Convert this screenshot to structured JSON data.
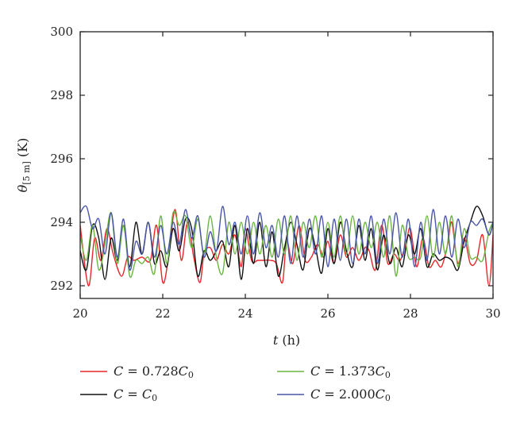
{
  "chart_data": {
    "type": "line",
    "xlabel": {
      "var": "t",
      "unit": " (h)"
    },
    "ylabel": {
      "var": "θ",
      "sub": "[5 m]",
      "unit": " (K)"
    },
    "xlim": [
      20,
      30
    ],
    "ylim": [
      291.6,
      300
    ],
    "xticks": [
      20,
      22,
      24,
      26,
      28,
      30
    ],
    "yticks": [
      292,
      294,
      296,
      298,
      300
    ],
    "grid": false,
    "legend_position": "bottom",
    "series": [
      {
        "name": "C = 0.728C0",
        "legend": {
          "pre": "C = 0.728",
          "var": "C",
          "sub": "0"
        },
        "color": "#e8262a",
        "x": [
          20.0,
          20.2,
          20.35,
          20.5,
          20.65,
          20.8,
          21.0,
          21.15,
          21.3,
          21.5,
          21.7,
          21.85,
          22.0,
          22.15,
          22.3,
          22.45,
          22.6,
          22.75,
          22.9,
          23.0,
          23.15,
          23.3,
          23.45,
          23.6,
          23.75,
          23.9,
          24.0,
          24.15,
          24.3,
          24.45,
          24.6,
          24.75,
          24.9,
          25.0,
          25.15,
          25.3,
          25.45,
          25.6,
          25.75,
          25.9,
          26.0,
          26.15,
          26.3,
          26.45,
          26.6,
          26.75,
          26.9,
          27.0,
          27.15,
          27.3,
          27.45,
          27.6,
          27.75,
          27.9,
          28.0,
          28.15,
          28.3,
          28.45,
          28.6,
          28.75,
          28.9,
          29.0,
          29.15,
          29.3,
          29.45,
          29.6,
          29.75,
          29.9,
          30.0
        ],
        "values": [
          293.9,
          292.0,
          293.5,
          292.8,
          293.8,
          293.0,
          292.3,
          292.9,
          292.8,
          292.9,
          292.8,
          293.9,
          292.1,
          293.0,
          294.4,
          292.8,
          294.0,
          292.9,
          292.1,
          293.0,
          293.2,
          292.8,
          293.3,
          293.0,
          293.6,
          292.6,
          293.8,
          292.8,
          292.8,
          292.8,
          292.8,
          292.7,
          292.1,
          293.4,
          292.7,
          293.9,
          292.8,
          292.9,
          293.3,
          292.9,
          293.4,
          292.7,
          293.6,
          292.9,
          293.2,
          292.8,
          293.2,
          293.1,
          292.5,
          293.9,
          292.7,
          293.0,
          292.8,
          293.4,
          293.8,
          292.6,
          293.5,
          292.6,
          292.8,
          292.6,
          293.3,
          294.0,
          292.7,
          293.5,
          292.7,
          292.8,
          293.6,
          292.0,
          293.6
        ]
      },
      {
        "name": "C = C0",
        "legend": {
          "pre": "C = ",
          "var": "C",
          "sub": "0"
        },
        "color": "#111111",
        "x": [
          20.0,
          20.15,
          20.3,
          20.45,
          20.6,
          20.75,
          20.9,
          21.05,
          21.2,
          21.35,
          21.5,
          21.65,
          21.8,
          21.95,
          22.1,
          22.25,
          22.4,
          22.55,
          22.7,
          22.85,
          23.0,
          23.15,
          23.3,
          23.45,
          23.6,
          23.75,
          23.9,
          24.05,
          24.2,
          24.35,
          24.5,
          24.65,
          24.8,
          24.95,
          25.1,
          25.25,
          25.4,
          25.55,
          25.7,
          25.85,
          26.0,
          26.15,
          26.3,
          26.45,
          26.6,
          26.75,
          26.9,
          27.05,
          27.2,
          27.35,
          27.5,
          27.65,
          27.8,
          27.95,
          28.1,
          28.25,
          28.4,
          28.55,
          28.7,
          28.85,
          29.0,
          29.15,
          29.3,
          29.45,
          29.6,
          29.75,
          29.9,
          30.0
        ],
        "values": [
          293.1,
          292.5,
          293.9,
          293.5,
          292.2,
          293.5,
          292.8,
          293.9,
          292.6,
          294.0,
          293.0,
          294.0,
          292.7,
          293.1,
          292.6,
          293.8,
          293.1,
          294.1,
          293.8,
          292.3,
          293.1,
          292.8,
          293.1,
          293.4,
          292.6,
          293.9,
          292.2,
          293.8,
          292.7,
          294.0,
          292.6,
          293.7,
          292.3,
          293.2,
          294.0,
          293.3,
          292.5,
          293.8,
          293.2,
          292.4,
          293.8,
          292.7,
          294.0,
          293.1,
          292.6,
          293.9,
          292.8,
          293.8,
          292.5,
          293.6,
          292.7,
          293.2,
          292.6,
          293.6,
          293.0,
          293.8,
          292.6,
          293.0,
          292.8,
          292.9,
          292.8,
          292.5,
          293.4,
          294.0,
          294.5,
          294.2,
          293.6,
          294.0
        ]
      },
      {
        "name": "C = 1.373C0",
        "legend": {
          "pre": "C = 1.373",
          "var": "C",
          "sub": "0"
        },
        "color": "#6ab540",
        "x": [
          20.0,
          20.15,
          20.3,
          20.45,
          20.6,
          20.75,
          20.9,
          21.05,
          21.2,
          21.35,
          21.5,
          21.65,
          21.8,
          21.95,
          22.1,
          22.25,
          22.4,
          22.55,
          22.7,
          22.85,
          23.0,
          23.15,
          23.3,
          23.45,
          23.6,
          23.75,
          23.9,
          24.05,
          24.2,
          24.35,
          24.5,
          24.65,
          24.8,
          24.95,
          25.1,
          25.25,
          25.4,
          25.55,
          25.7,
          25.85,
          26.0,
          26.15,
          26.3,
          26.45,
          26.6,
          26.75,
          26.9,
          27.05,
          27.2,
          27.35,
          27.5,
          27.65,
          27.8,
          27.95,
          28.1,
          28.25,
          28.4,
          28.55,
          28.7,
          28.85,
          29.0,
          29.15,
          29.3,
          29.45,
          29.6,
          29.75,
          29.9,
          30.0
        ],
        "values": [
          293.6,
          292.8,
          293.9,
          292.5,
          293.3,
          294.3,
          292.7,
          293.9,
          292.3,
          292.8,
          292.7,
          292.9,
          292.4,
          294.2,
          292.7,
          294.3,
          293.9,
          294.2,
          293.2,
          294.1,
          293.0,
          294.2,
          292.9,
          292.4,
          294.0,
          293.0,
          294.0,
          293.0,
          294.0,
          293.0,
          293.9,
          292.9,
          294.1,
          293.0,
          294.2,
          292.8,
          294.0,
          293.2,
          294.2,
          292.9,
          294.0,
          292.9,
          294.2,
          293.0,
          294.2,
          293.0,
          294.0,
          293.2,
          294.0,
          292.9,
          294.2,
          292.3,
          293.9,
          292.9,
          292.9,
          292.9,
          294.2,
          292.9,
          294.0,
          293.0,
          294.2,
          292.6,
          293.8,
          292.9,
          292.9,
          292.8,
          293.7,
          294.0
        ]
      },
      {
        "name": "C = 2.000C0",
        "legend": {
          "pre": "C = 2.000",
          "var": "C",
          "sub": "0"
        },
        "color": "#4a56a6",
        "x": [
          20.0,
          20.15,
          20.3,
          20.45,
          20.6,
          20.75,
          20.9,
          21.05,
          21.2,
          21.35,
          21.5,
          21.65,
          21.8,
          21.95,
          22.1,
          22.25,
          22.4,
          22.55,
          22.7,
          22.85,
          23.0,
          23.15,
          23.3,
          23.45,
          23.6,
          23.75,
          23.9,
          24.05,
          24.2,
          24.35,
          24.5,
          24.65,
          24.8,
          24.95,
          25.1,
          25.25,
          25.4,
          25.55,
          25.7,
          25.85,
          26.0,
          26.15,
          26.3,
          26.45,
          26.6,
          26.75,
          26.9,
          27.05,
          27.2,
          27.35,
          27.5,
          27.65,
          27.8,
          27.95,
          28.1,
          28.25,
          28.4,
          28.55,
          28.7,
          28.85,
          29.0,
          29.15,
          29.3,
          29.45,
          29.6,
          29.75,
          29.9,
          30.0
        ],
        "values": [
          294.3,
          294.5,
          293.8,
          294.1,
          293.0,
          294.3,
          292.9,
          294.1,
          292.5,
          293.4,
          293.0,
          294.0,
          292.9,
          293.9,
          293.0,
          294.0,
          293.3,
          294.4,
          293.5,
          294.2,
          292.9,
          293.7,
          293.1,
          294.5,
          293.3,
          294.0,
          293.0,
          294.2,
          293.0,
          294.3,
          293.2,
          293.9,
          292.9,
          294.2,
          292.7,
          294.2,
          292.9,
          294.1,
          293.0,
          294.2,
          292.6,
          294.1,
          292.8,
          294.1,
          292.7,
          294.1,
          293.0,
          294.2,
          292.7,
          294.1,
          293.0,
          294.3,
          292.9,
          294.1,
          292.6,
          294.0,
          292.8,
          294.4,
          293.0,
          294.2,
          292.9,
          294.1,
          293.2,
          294.0,
          293.9,
          294.1,
          293.6,
          294.0
        ]
      }
    ]
  }
}
